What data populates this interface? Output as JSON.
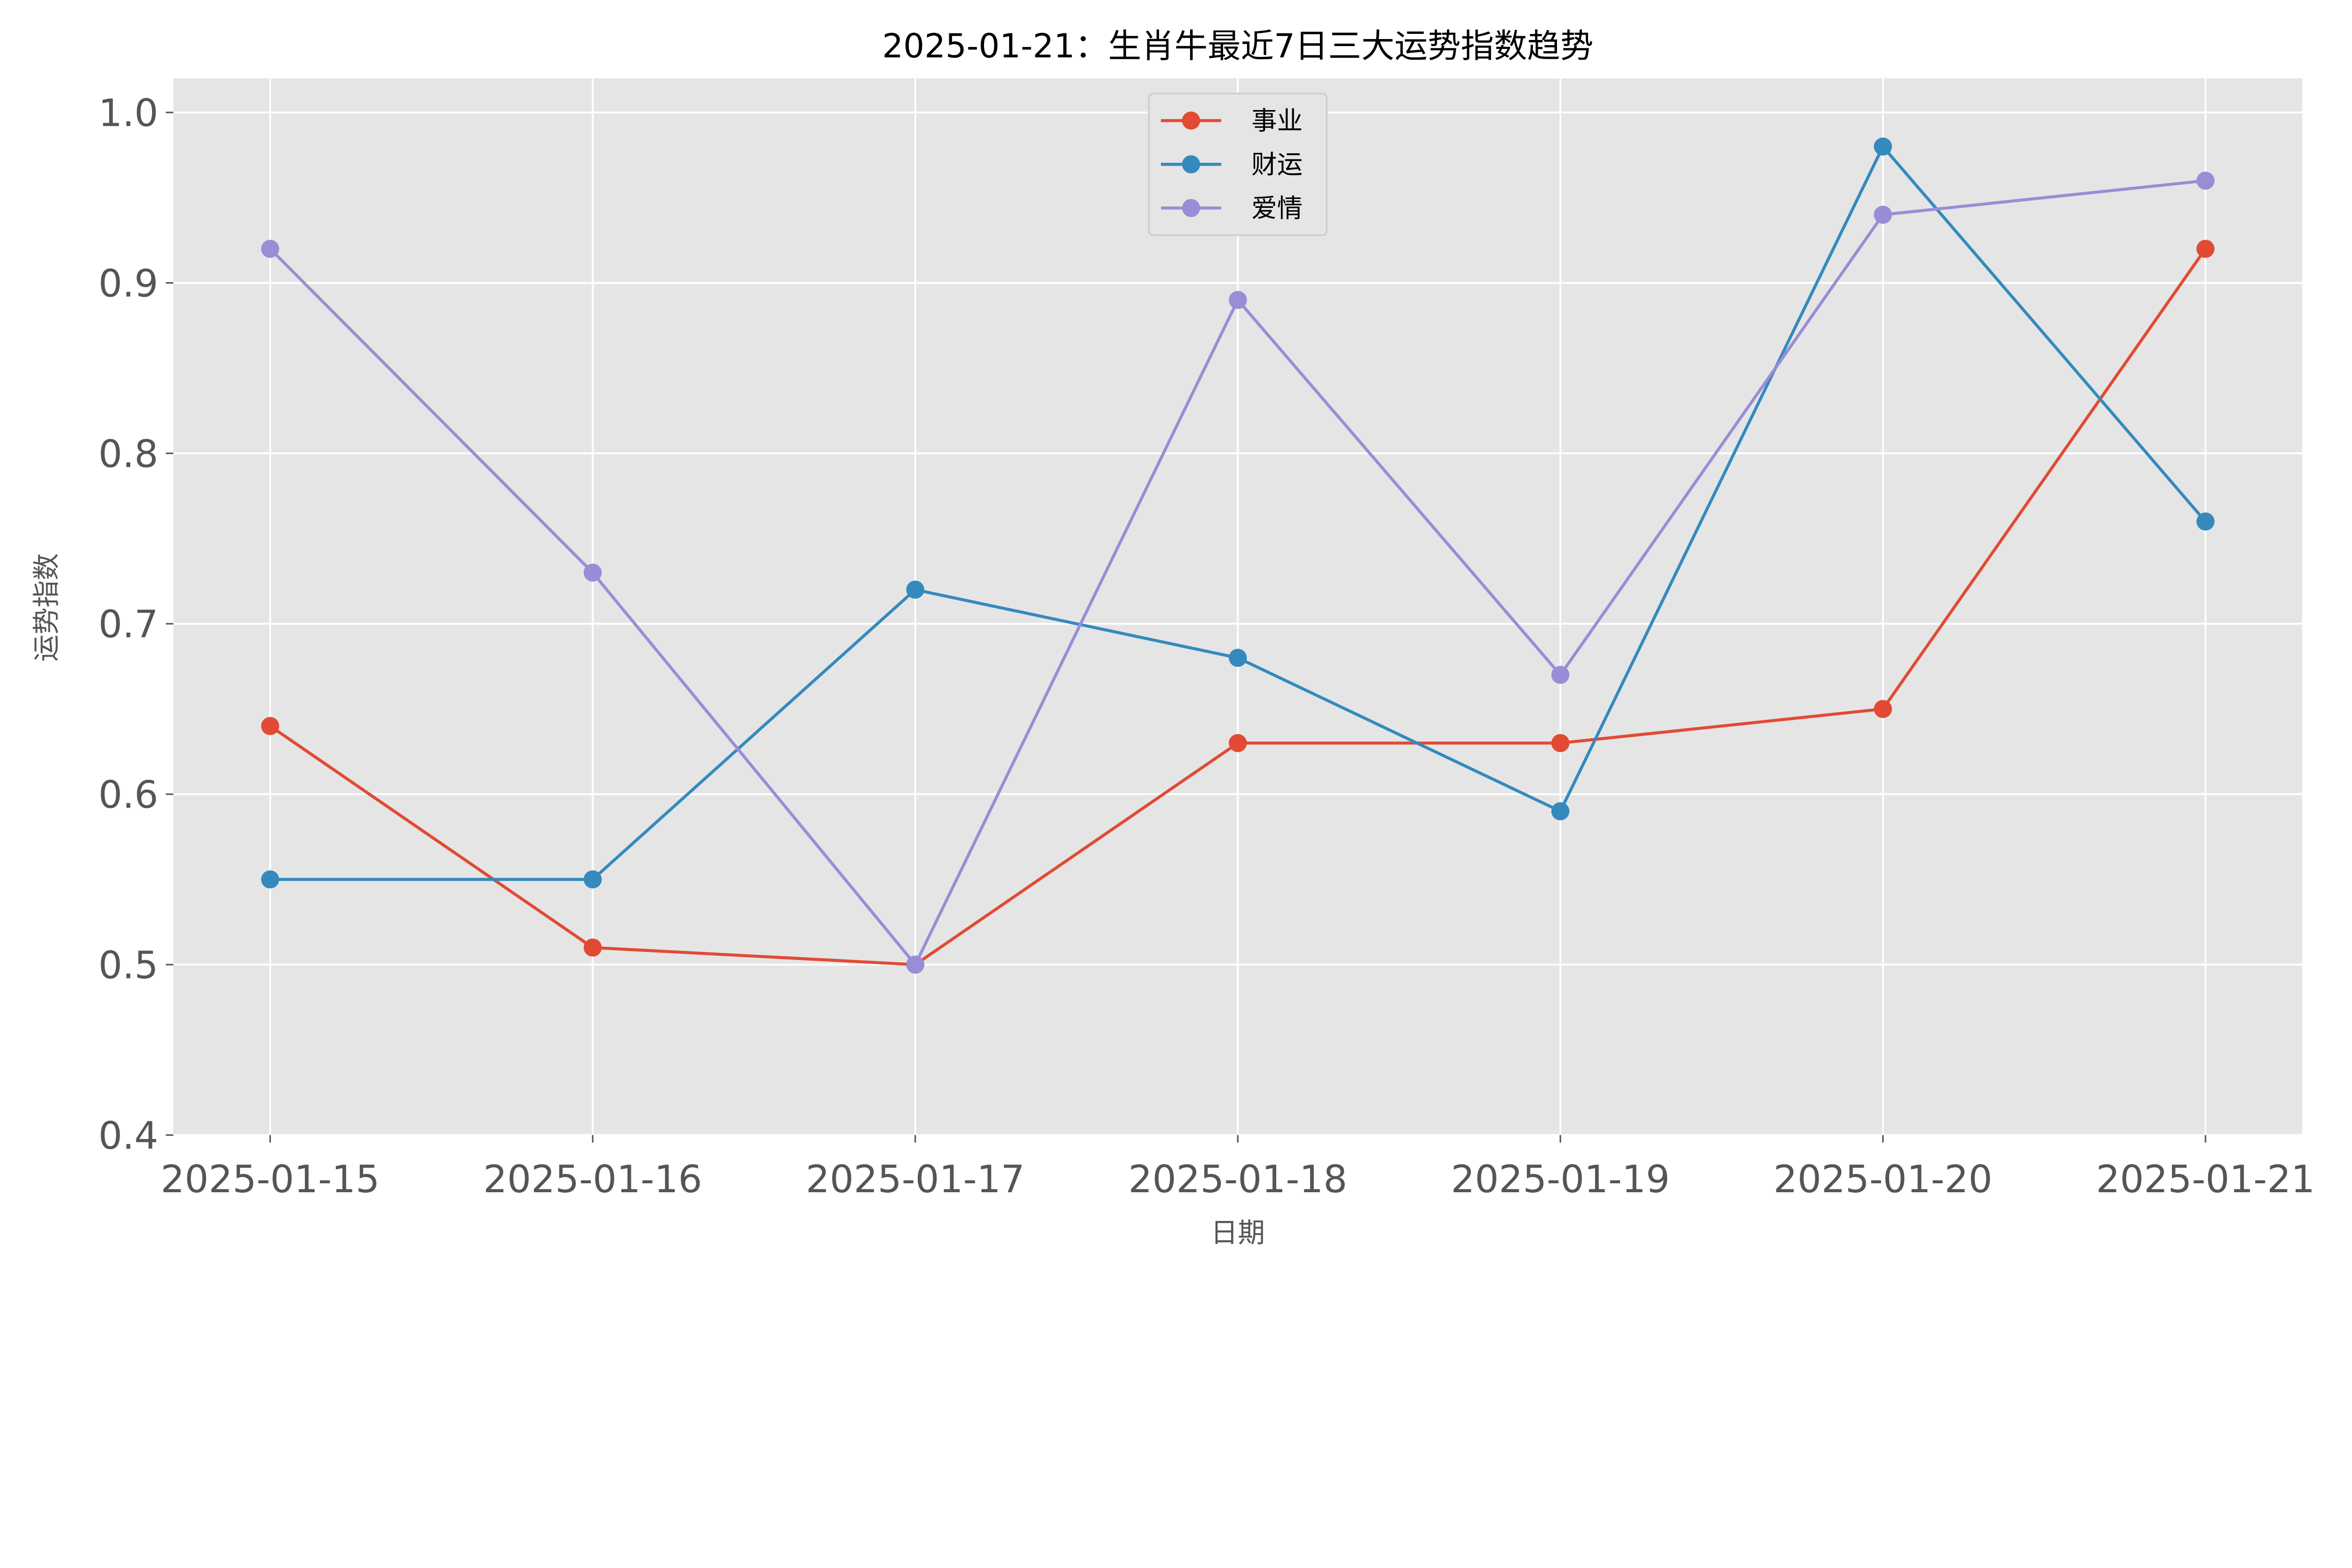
{
  "chart_data": {
    "type": "line",
    "title": "2025-01-21：生肖牛最近7日三大运势指数趋势",
    "xlabel": "日期",
    "ylabel": "运势指数",
    "categories": [
      "2025-01-15",
      "2025-01-16",
      "2025-01-17",
      "2025-01-18",
      "2025-01-19",
      "2025-01-20",
      "2025-01-21"
    ],
    "ylim": [
      0.4,
      1.02
    ],
    "yticks": [
      "0.4",
      "0.5",
      "0.6",
      "0.7",
      "0.8",
      "0.9",
      "1.0"
    ],
    "grid": true,
    "legend_position": "top-center",
    "background": "#E5E5E5",
    "series": [
      {
        "name": "事业",
        "color": "#E24A33",
        "marker": "circle",
        "values": [
          0.64,
          0.51,
          0.5,
          0.63,
          0.63,
          0.65,
          0.92
        ]
      },
      {
        "name": "财运",
        "color": "#348ABD",
        "marker": "circle",
        "values": [
          0.55,
          0.55,
          0.72,
          0.68,
          0.59,
          0.98,
          0.76
        ]
      },
      {
        "name": "爱情",
        "color": "#988ED5",
        "marker": "circle",
        "values": [
          0.92,
          0.73,
          0.5,
          0.89,
          0.67,
          0.94,
          0.96
        ]
      }
    ]
  }
}
